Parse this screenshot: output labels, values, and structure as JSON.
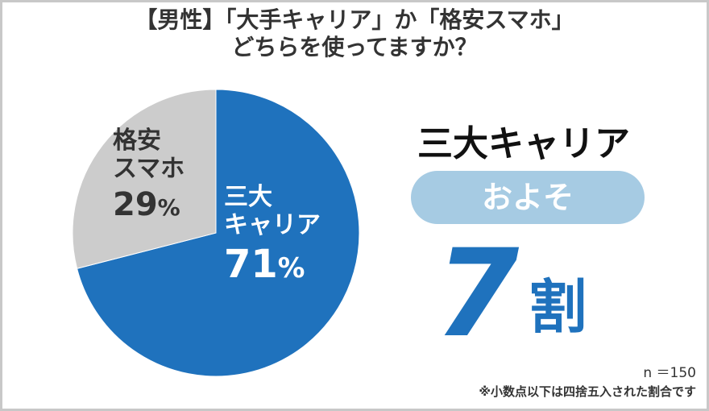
{
  "title": {
    "line1": "【男性】「大手キャリア」か「格安スマホ」",
    "line2": "どちらを使ってますか？"
  },
  "chart_data": {
    "type": "pie",
    "slices": [
      {
        "label_line1": "三大",
        "label_line2": "キャリア",
        "value": 71,
        "percent_text": "71",
        "color": "#1f72bd"
      },
      {
        "label_line1": "格安",
        "label_line2": "スマホ",
        "value": 29,
        "percent_text": "29",
        "color": "#cccccc"
      }
    ],
    "percent_unit": "%"
  },
  "summary": {
    "headline": "三大キャリア",
    "pill": "およそ",
    "ratio_number": "7",
    "ratio_unit": "割"
  },
  "footnote": {
    "sample_size": "n ＝150",
    "rounding_note": "※小数点以下は四捨五入された割合です"
  },
  "colors": {
    "accent": "#1f72bd",
    "secondary": "#cccccc",
    "pill": "#a6cbe3",
    "text": "#333333"
  }
}
